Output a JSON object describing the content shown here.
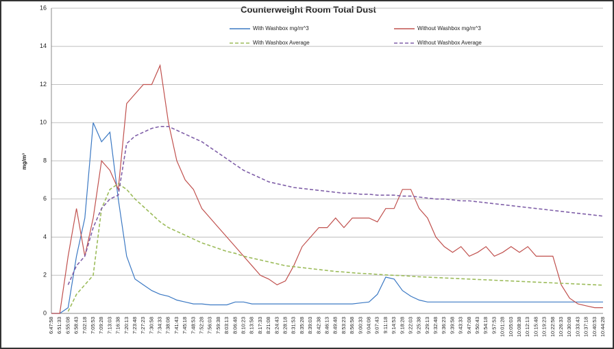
{
  "chart_data": {
    "type": "line",
    "title": "Counterweight Room Total Dust",
    "y_label": "mg/m³",
    "categories": [
      "6:47:58",
      "6:51:33",
      "6:55:08",
      "6:58:43",
      "7:02:18",
      "7:05:53",
      "7:09:28",
      "7:13:03",
      "7:16:38",
      "7:20:13",
      "7:23:48",
      "7:27:23",
      "7:30:58",
      "7:34:33",
      "7:38:08",
      "7:41:43",
      "7:45:18",
      "7:48:53",
      "7:52:28",
      "7:56:03",
      "7:59:38",
      "8:03:13",
      "8:06:48",
      "8:10:23",
      "8:13:58",
      "8:17:33",
      "8:21:08",
      "8:24:43",
      "8:28:18",
      "8:31:53",
      "8:35:28",
      "8:39:03",
      "8:42:38",
      "8:46:13",
      "8:49:48",
      "8:53:23",
      "8:56:58",
      "9:00:33",
      "9:04:08",
      "9:07:43",
      "9:11:18",
      "9:14:53",
      "9:18:28",
      "9:22:03",
      "9:25:38",
      "9:29:13",
      "9:32:48",
      "9:36:23",
      "9:39:58",
      "9:43:33",
      "9:47:08",
      "9:50:43",
      "9:54:18",
      "9:57:53",
      "10:01:28",
      "10:05:03",
      "10:08:38",
      "10:12:13",
      "10:15:48",
      "10:19:23",
      "10:22:58",
      "10:26:33",
      "10:30:08",
      "10:33:43",
      "10:37:18",
      "10:40:53",
      "10:44:28"
    ],
    "series": [
      {
        "name": "With Washbox mg/m^3",
        "color": "#3a78c3",
        "dash": false,
        "values": [
          0,
          0,
          0.3,
          3,
          5,
          10,
          9,
          9.5,
          6,
          3,
          1.8,
          1.5,
          1.2,
          1,
          0.9,
          0.7,
          0.6,
          0.5,
          0.5,
          0.45,
          0.45,
          0.45,
          0.6,
          0.6,
          0.5,
          0.5,
          0.5,
          0.5,
          0.5,
          0.5,
          0.5,
          0.5,
          0.5,
          0.5,
          0.5,
          0.5,
          0.5,
          0.55,
          0.6,
          1,
          1.9,
          1.8,
          1.2,
          0.9,
          0.7,
          0.6,
          0.6,
          0.6,
          0.6,
          0.6,
          0.6,
          0.6,
          0.6,
          0.6,
          0.6,
          0.6,
          0.6,
          0.6,
          0.6,
          0.6,
          0.6,
          0.6,
          0.6,
          0.6,
          0.6,
          0.6,
          0.6
        ]
      },
      {
        "name": "Without Washbox mg/m^3",
        "color": "#c0504d",
        "dash": false,
        "values": [
          0,
          0,
          3,
          5.5,
          3,
          5,
          8,
          7.5,
          6.5,
          11,
          11.5,
          12,
          12,
          13,
          10,
          8,
          7,
          6.5,
          5.5,
          5,
          4.5,
          4,
          3.5,
          3,
          2.5,
          2,
          1.8,
          1.5,
          1.7,
          2.5,
          3.5,
          4,
          4.5,
          4.5,
          5,
          4.5,
          5,
          5,
          5,
          4.8,
          5.5,
          5.5,
          6.5,
          6.5,
          5.5,
          5,
          4,
          3.5,
          3.2,
          3.5,
          3,
          3.2,
          3.5,
          3,
          3.2,
          3.5,
          3.2,
          3.5,
          3,
          3,
          3,
          1.5,
          0.8,
          0.5,
          0.4,
          0.3,
          0.3
        ]
      },
      {
        "name": "With Washbox Average",
        "color": "#9bbb59",
        "dash": true,
        "values": [
          null,
          null,
          0.1,
          1,
          1.5,
          2,
          5.5,
          6.5,
          6.8,
          6.5,
          6,
          5.6,
          5.2,
          4.8,
          4.5,
          4.3,
          4.1,
          3.9,
          3.7,
          3.55,
          3.4,
          3.25,
          3.15,
          3,
          2.9,
          2.8,
          2.7,
          2.6,
          2.5,
          2.45,
          2.4,
          2.35,
          2.3,
          2.25,
          2.2,
          2.17,
          2.13,
          2.1,
          2.08,
          2.05,
          2.02,
          2,
          1.98,
          1.95,
          1.92,
          1.9,
          1.88,
          1.86,
          1.84,
          1.82,
          1.8,
          1.78,
          1.76,
          1.74,
          1.72,
          1.7,
          1.68,
          1.66,
          1.64,
          1.62,
          1.6,
          1.58,
          1.56,
          1.54,
          1.52,
          1.5,
          1.48
        ]
      },
      {
        "name": "Without Washbox Average",
        "color": "#7f5fa8",
        "dash": true,
        "values": [
          null,
          null,
          1.5,
          2.5,
          3,
          4.5,
          5.5,
          6,
          6.2,
          8.9,
          9.3,
          9.5,
          9.7,
          9.8,
          9.8,
          9.6,
          9.4,
          9.2,
          9,
          8.7,
          8.4,
          8.1,
          7.8,
          7.5,
          7.3,
          7.1,
          6.9,
          6.8,
          6.7,
          6.6,
          6.55,
          6.5,
          6.45,
          6.4,
          6.35,
          6.3,
          6.3,
          6.25,
          6.25,
          6.2,
          6.2,
          6.2,
          6.15,
          6.15,
          6.1,
          6.05,
          6,
          6,
          5.95,
          5.9,
          5.9,
          5.85,
          5.8,
          5.75,
          5.7,
          5.65,
          5.6,
          5.55,
          5.5,
          5.45,
          5.4,
          5.35,
          5.3,
          5.25,
          5.2,
          5.15,
          5.1
        ]
      }
    ],
    "ylim": [
      0,
      16
    ],
    "yticks": [
      0,
      2,
      4,
      6,
      8,
      10,
      12,
      14,
      16
    ],
    "grid": true
  }
}
